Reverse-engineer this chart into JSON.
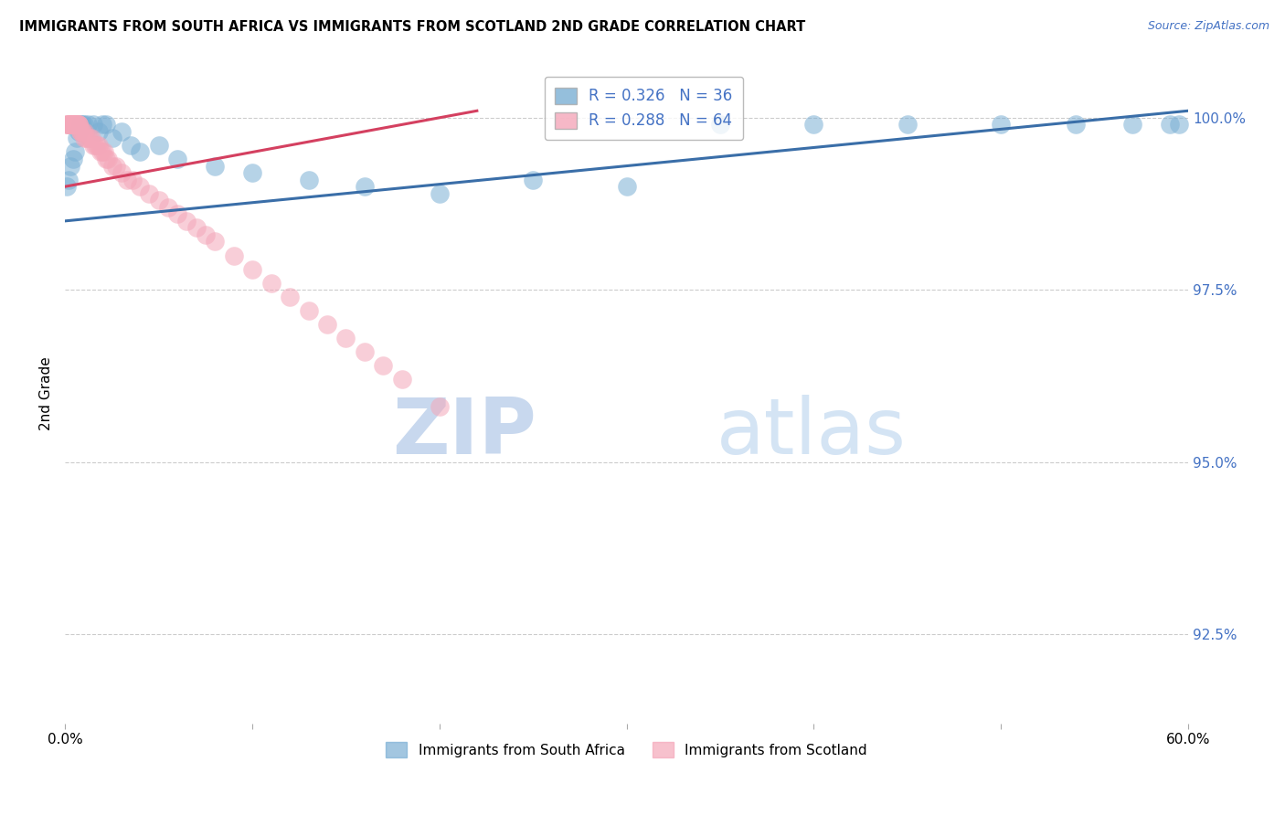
{
  "title": "IMMIGRANTS FROM SOUTH AFRICA VS IMMIGRANTS FROM SCOTLAND 2ND GRADE CORRELATION CHART",
  "source": "Source: ZipAtlas.com",
  "ylabel": "2nd Grade",
  "ytick_labels": [
    "92.5%",
    "95.0%",
    "97.5%",
    "100.0%"
  ],
  "ytick_values": [
    0.925,
    0.95,
    0.975,
    1.0
  ],
  "xmin": 0.0,
  "xmax": 0.6,
  "ymin": 0.912,
  "ymax": 1.008,
  "blue_R": 0.326,
  "blue_N": 36,
  "pink_R": 0.288,
  "pink_N": 64,
  "blue_color": "#7bafd4",
  "pink_color": "#f4a7b9",
  "blue_line_color": "#3a6ea8",
  "pink_line_color": "#d44060",
  "legend_label_blue": "Immigrants from South Africa",
  "legend_label_pink": "Immigrants from Scotland",
  "watermark_zip": "ZIP",
  "watermark_atlas": "atlas",
  "blue_scatter_x": [
    0.001,
    0.002,
    0.003,
    0.004,
    0.005,
    0.006,
    0.007,
    0.008,
    0.009,
    0.01,
    0.012,
    0.015,
    0.018,
    0.02,
    0.022,
    0.025,
    0.03,
    0.035,
    0.04,
    0.05,
    0.06,
    0.08,
    0.1,
    0.13,
    0.16,
    0.2,
    0.25,
    0.3,
    0.35,
    0.4,
    0.45,
    0.5,
    0.54,
    0.57,
    0.59,
    0.595
  ],
  "blue_scatter_y": [
    0.99,
    0.991,
    0.993,
    0.994,
    0.995,
    0.997,
    0.998,
    0.999,
    0.999,
    0.999,
    0.999,
    0.999,
    0.998,
    0.999,
    0.999,
    0.997,
    0.998,
    0.996,
    0.995,
    0.996,
    0.994,
    0.993,
    0.992,
    0.991,
    0.99,
    0.989,
    0.991,
    0.99,
    0.999,
    0.999,
    0.999,
    0.999,
    0.999,
    0.999,
    0.999,
    0.999
  ],
  "pink_scatter_x": [
    0.001,
    0.001,
    0.002,
    0.002,
    0.002,
    0.003,
    0.003,
    0.003,
    0.004,
    0.004,
    0.004,
    0.005,
    0.005,
    0.005,
    0.006,
    0.006,
    0.006,
    0.007,
    0.007,
    0.007,
    0.008,
    0.008,
    0.009,
    0.009,
    0.01,
    0.01,
    0.011,
    0.012,
    0.013,
    0.014,
    0.015,
    0.016,
    0.017,
    0.018,
    0.019,
    0.02,
    0.021,
    0.022,
    0.023,
    0.025,
    0.027,
    0.03,
    0.033,
    0.036,
    0.04,
    0.045,
    0.05,
    0.055,
    0.06,
    0.065,
    0.07,
    0.075,
    0.08,
    0.09,
    0.1,
    0.11,
    0.12,
    0.13,
    0.14,
    0.15,
    0.16,
    0.17,
    0.18,
    0.2
  ],
  "pink_scatter_y": [
    0.999,
    0.999,
    0.999,
    0.999,
    0.999,
    0.999,
    0.999,
    0.999,
    0.999,
    0.999,
    0.999,
    0.999,
    0.999,
    0.999,
    0.999,
    0.999,
    0.999,
    0.999,
    0.999,
    0.999,
    0.998,
    0.998,
    0.998,
    0.998,
    0.998,
    0.997,
    0.997,
    0.997,
    0.997,
    0.997,
    0.996,
    0.996,
    0.996,
    0.996,
    0.995,
    0.995,
    0.995,
    0.994,
    0.994,
    0.993,
    0.993,
    0.992,
    0.991,
    0.991,
    0.99,
    0.989,
    0.988,
    0.987,
    0.986,
    0.985,
    0.984,
    0.983,
    0.982,
    0.98,
    0.978,
    0.976,
    0.974,
    0.972,
    0.97,
    0.968,
    0.966,
    0.964,
    0.962,
    0.958
  ],
  "blue_line_x": [
    0.0,
    0.6
  ],
  "blue_line_y": [
    0.985,
    1.001
  ],
  "pink_line_x": [
    0.0,
    0.22
  ],
  "pink_line_y": [
    0.99,
    1.001
  ]
}
